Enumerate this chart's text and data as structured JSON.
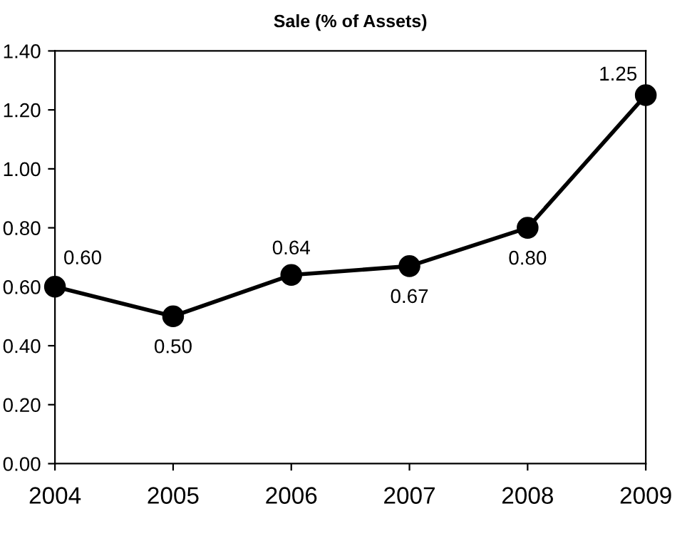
{
  "chart_data": {
    "type": "line",
    "title": "Sale (% of Assets)",
    "categories": [
      "2004",
      "2005",
      "2006",
      "2007",
      "2008",
      "2009"
    ],
    "series": [
      {
        "color": "#000000",
        "values": [
          0.6,
          0.5,
          0.64,
          0.67,
          0.8,
          1.25
        ],
        "value_labels": [
          "0.60",
          "0.50",
          "0.64",
          "0.67",
          "0.80",
          "1.25"
        ]
      }
    ],
    "ylim": [
      0,
      1.4
    ],
    "yticks": [
      {
        "value": 0,
        "label": "0.00"
      },
      {
        "value": 0.2,
        "label": "0.20"
      },
      {
        "value": 0.4,
        "label": "0.40"
      },
      {
        "value": 0.6,
        "label": "0.60"
      },
      {
        "value": 0.8,
        "label": "0.80"
      },
      {
        "value": 1.0,
        "label": "1.00"
      },
      {
        "value": 1.2,
        "label": "1.20"
      },
      {
        "value": 1.4,
        "label": "1.40"
      }
    ],
    "marker": "circle",
    "line_style": "solid",
    "grid": false,
    "legend": false
  }
}
